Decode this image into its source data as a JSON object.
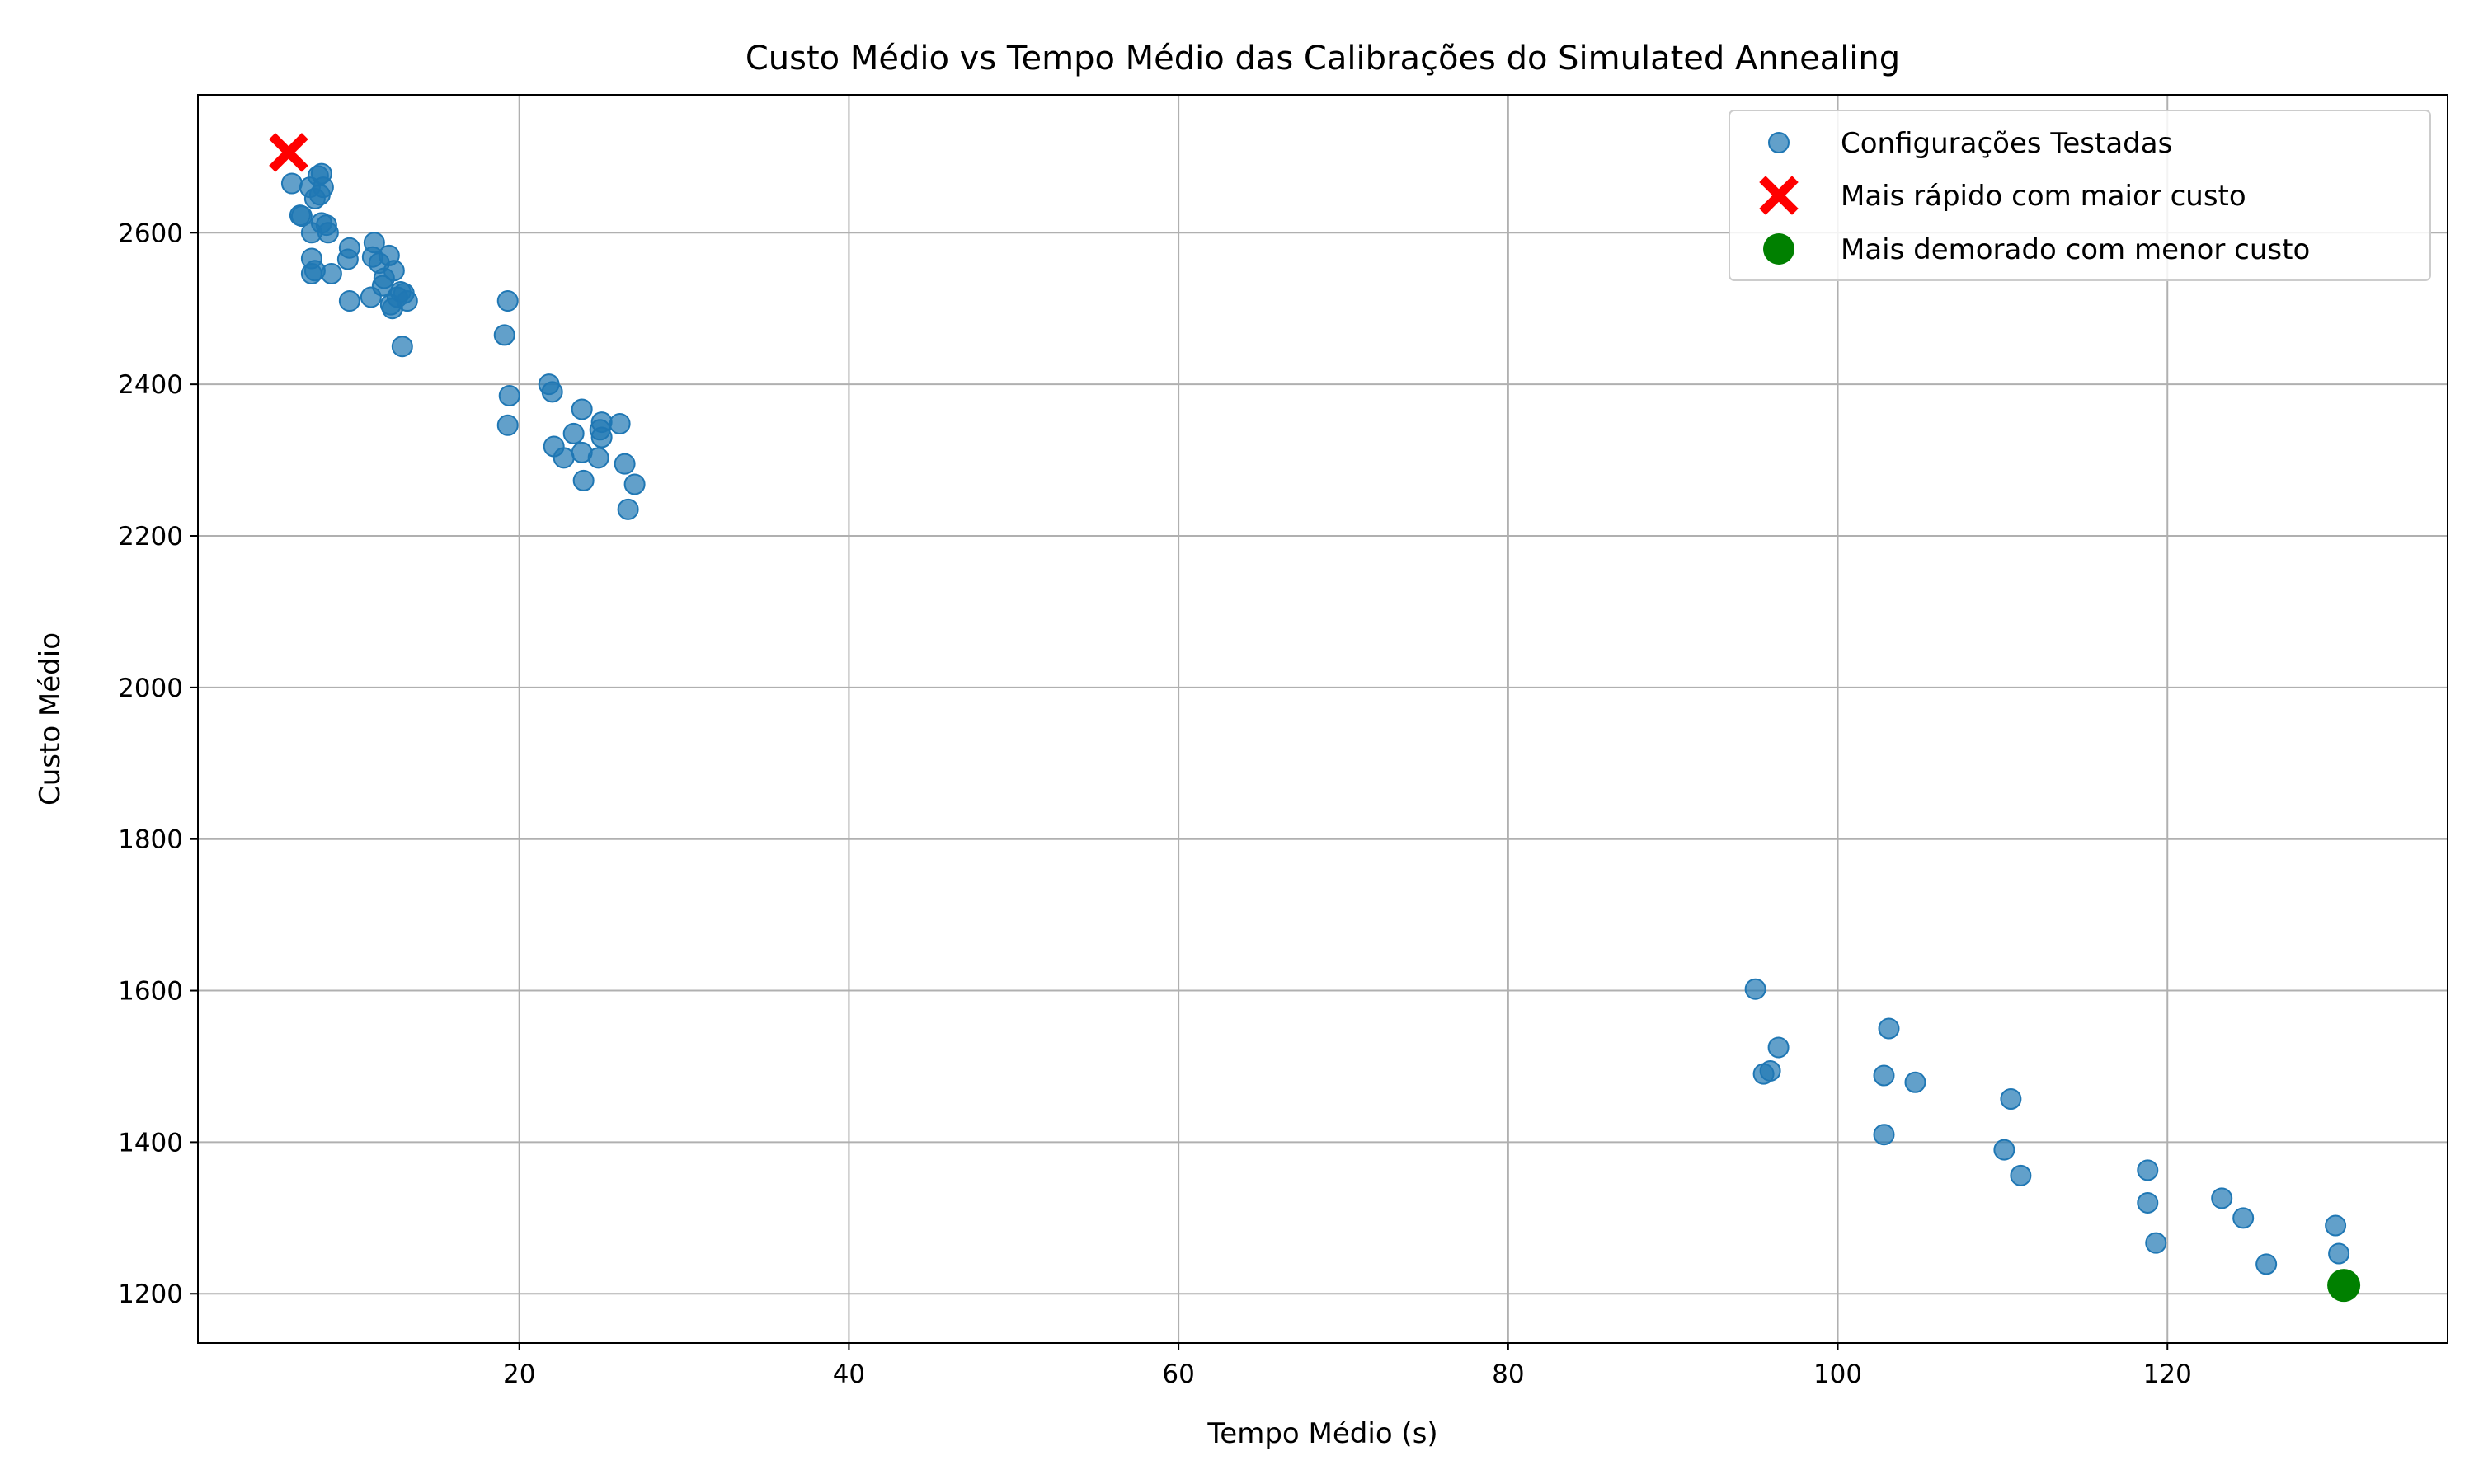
{
  "chart_data": {
    "type": "scatter",
    "title": "Custo Médio vs Tempo Médio das Calibrações do Simulated Annealing",
    "xlabel": "Tempo Médio (s)",
    "ylabel": "Custo Médio",
    "xlim": [
      0.5,
      137
    ],
    "ylim": [
      1135,
      2782
    ],
    "x_ticks": [
      20,
      40,
      60,
      80,
      100,
      120
    ],
    "y_ticks": [
      1200,
      1400,
      1600,
      1800,
      2000,
      2200,
      2400,
      2600
    ],
    "grid": true,
    "legend_position": "top-right",
    "colors": {
      "tested": "#1f77b4",
      "fastest": "#ff0000",
      "best": "#008000",
      "grid": "#b0b0b0"
    },
    "series": [
      {
        "name": "Configurações Testadas",
        "marker": "circle",
        "points": [
          [
            6.2,
            2665
          ],
          [
            6.8,
            2622
          ],
          [
            6.7,
            2623
          ],
          [
            7.3,
            2660
          ],
          [
            7.8,
            2675
          ],
          [
            8.0,
            2678
          ],
          [
            7.9,
            2650
          ],
          [
            8.1,
            2660
          ],
          [
            7.6,
            2645
          ],
          [
            7.4,
            2600
          ],
          [
            8.0,
            2613
          ],
          [
            8.3,
            2610
          ],
          [
            8.4,
            2600
          ],
          [
            7.4,
            2566
          ],
          [
            7.4,
            2546
          ],
          [
            7.6,
            2550
          ],
          [
            8.6,
            2546
          ],
          [
            9.7,
            2580
          ],
          [
            9.6,
            2565
          ],
          [
            9.7,
            2510
          ],
          [
            11.0,
            2515
          ],
          [
            11.2,
            2587
          ],
          [
            11.1,
            2568
          ],
          [
            11.5,
            2560
          ],
          [
            11.7,
            2530
          ],
          [
            11.8,
            2540
          ],
          [
            12.1,
            2570
          ],
          [
            12.4,
            2550
          ],
          [
            12.3,
            2500
          ],
          [
            12.2,
            2505
          ],
          [
            12.6,
            2515
          ],
          [
            12.8,
            2522
          ],
          [
            13.0,
            2520
          ],
          [
            13.2,
            2510
          ],
          [
            12.9,
            2450
          ],
          [
            19.3,
            2510
          ],
          [
            19.1,
            2465
          ],
          [
            19.4,
            2385
          ],
          [
            19.3,
            2346
          ],
          [
            21.8,
            2400
          ],
          [
            22.0,
            2390
          ],
          [
            22.1,
            2318
          ],
          [
            22.7,
            2303
          ],
          [
            23.3,
            2335
          ],
          [
            23.8,
            2367
          ],
          [
            23.8,
            2310
          ],
          [
            23.9,
            2273
          ],
          [
            24.8,
            2303
          ],
          [
            24.9,
            2340
          ],
          [
            25.0,
            2350
          ],
          [
            25.0,
            2330
          ],
          [
            26.1,
            2348
          ],
          [
            26.4,
            2295
          ],
          [
            26.6,
            2235
          ],
          [
            27.0,
            2268
          ],
          [
            95.0,
            1602
          ],
          [
            95.5,
            1490
          ],
          [
            95.9,
            1494
          ],
          [
            96.4,
            1525
          ],
          [
            102.8,
            1488
          ],
          [
            102.8,
            1410
          ],
          [
            103.1,
            1550
          ],
          [
            104.7,
            1479
          ],
          [
            110.1,
            1390
          ],
          [
            110.5,
            1457
          ],
          [
            111.1,
            1356
          ],
          [
            118.8,
            1363
          ],
          [
            118.8,
            1320
          ],
          [
            119.3,
            1267
          ],
          [
            123.3,
            1326
          ],
          [
            124.6,
            1300
          ],
          [
            126.0,
            1239
          ],
          [
            130.2,
            1290
          ],
          [
            130.4,
            1253
          ]
        ]
      },
      {
        "name": "Mais rápido com maior custo",
        "marker": "X",
        "points": [
          [
            6.0,
            2706
          ]
        ]
      },
      {
        "name": "Mais demorado com menor custo",
        "marker": "big-circle",
        "points": [
          [
            130.7,
            1211
          ]
        ]
      }
    ]
  }
}
